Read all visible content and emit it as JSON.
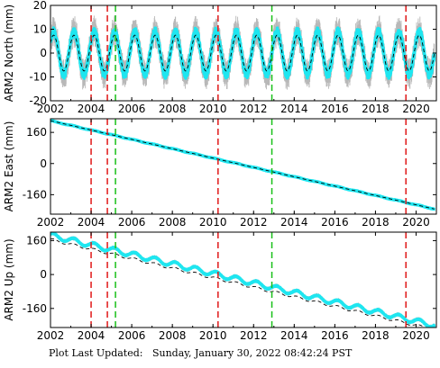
{
  "footer_text": "Plot Last Updated:   Sunday, January 30, 2022 08:42:24 PST",
  "colors": {
    "data": "#1ee6f0",
    "error": "#b8b8b8",
    "model": "#000000",
    "red_event": "#e01818",
    "green_event": "#18c018",
    "frame": "#000000"
  },
  "event_lines": {
    "red": [
      2004.0,
      2004.8,
      2010.25,
      2019.5
    ],
    "green": [
      2005.2,
      2012.9
    ]
  },
  "chart_data": [
    {
      "type": "line",
      "name": "north-panel",
      "ylabel": "ARM2 North (mm)",
      "xlim": [
        2002,
        2021
      ],
      "ylim": [
        -20,
        20
      ],
      "xticks": [
        2002,
        2004,
        2006,
        2008,
        2010,
        2012,
        2014,
        2016,
        2018,
        2020
      ],
      "yticks": [
        -20,
        -10,
        0,
        10,
        20
      ],
      "series": [
        {
          "role": "observed",
          "x_range": [
            2002,
            2020.9
          ],
          "trend_start": 0,
          "trend_rate": 0,
          "seasonal_amplitude": 9,
          "error_bar": 3
        },
        {
          "role": "model",
          "x_range": [
            2002,
            2020.9
          ],
          "trend_start": 0,
          "trend_rate": 0,
          "seasonal_amplitude": 7.5
        }
      ]
    },
    {
      "type": "line",
      "name": "east-panel",
      "ylabel": "ARM2 East (mm)",
      "xlim": [
        2002,
        2021
      ],
      "ylim": [
        -260,
        230
      ],
      "xticks": [
        2002,
        2004,
        2006,
        2008,
        2010,
        2012,
        2014,
        2016,
        2018,
        2020
      ],
      "yticks": [
        -160,
        0,
        160
      ],
      "series": [
        {
          "role": "observed",
          "x_range": [
            2002,
            2020.9
          ],
          "trend_start": 220,
          "trend_rate": -24,
          "seasonal_amplitude": 1.5,
          "error_bar": 3
        },
        {
          "role": "model",
          "x_range": [
            2002,
            2020.9
          ],
          "trend_start": 220,
          "trend_rate": -24,
          "seasonal_amplitude": 0
        }
      ]
    },
    {
      "type": "line",
      "name": "up-panel",
      "ylabel": "ARM2 Up (mm)",
      "xlim": [
        2002,
        2021
      ],
      "ylim": [
        -250,
        200
      ],
      "xticks": [
        2002,
        2004,
        2006,
        2008,
        2010,
        2012,
        2014,
        2016,
        2018,
        2020
      ],
      "yticks": [
        -160,
        0,
        160
      ],
      "series": [
        {
          "role": "observed",
          "x_range": [
            2002,
            2020.9
          ],
          "trend_start": 185,
          "trend_rate": -22.5,
          "seasonal_amplitude": 12,
          "error_bar": 5
        },
        {
          "role": "model",
          "x_range": [
            2002,
            2020.9
          ],
          "trend_start": 165,
          "trend_rate": -22.5,
          "seasonal_amplitude": 6
        }
      ]
    }
  ]
}
